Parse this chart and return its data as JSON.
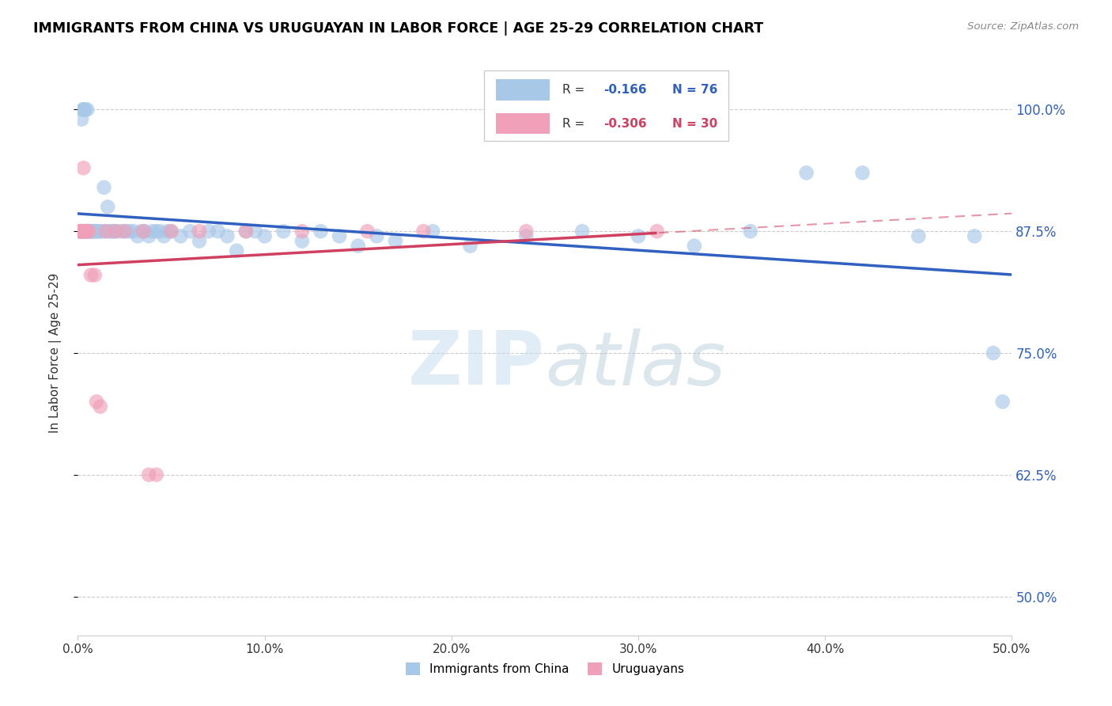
{
  "title": "IMMIGRANTS FROM CHINA VS URUGUAYAN IN LABOR FORCE | AGE 25-29 CORRELATION CHART",
  "source": "Source: ZipAtlas.com",
  "ylabel": "In Labor Force | Age 25-29",
  "yticks": [
    0.5,
    0.625,
    0.75,
    0.875,
    1.0
  ],
  "ytick_labels": [
    "50.0%",
    "62.5%",
    "75.0%",
    "87.5%",
    "100.0%"
  ],
  "xlim": [
    0.0,
    0.5
  ],
  "ylim": [
    0.46,
    1.04
  ],
  "legend_r_china": "-0.166",
  "legend_n_china": "76",
  "legend_r_uruguay": "-0.306",
  "legend_n_uruguay": "30",
  "color_china": "#a8c8e8",
  "color_uruguay": "#f0a0b8",
  "color_china_line": "#3060c0",
  "color_uruguay_line": "#d04060",
  "color_right_labels": "#3060c0",
  "watermark": "ZIPatlas",
  "china_x": [
    0.001,
    0.002,
    0.002,
    0.003,
    0.003,
    0.003,
    0.004,
    0.004,
    0.004,
    0.005,
    0.005,
    0.005,
    0.006,
    0.006,
    0.007,
    0.007,
    0.008,
    0.008,
    0.009,
    0.01,
    0.01,
    0.011,
    0.012,
    0.013,
    0.014,
    0.015,
    0.016,
    0.017,
    0.018,
    0.019,
    0.02,
    0.022,
    0.024,
    0.026,
    0.028,
    0.03,
    0.032,
    0.034,
    0.036,
    0.038,
    0.04,
    0.042,
    0.044,
    0.046,
    0.048,
    0.05,
    0.055,
    0.06,
    0.065,
    0.07,
    0.075,
    0.08,
    0.085,
    0.09,
    0.095,
    0.1,
    0.11,
    0.12,
    0.13,
    0.14,
    0.15,
    0.16,
    0.17,
    0.19,
    0.21,
    0.24,
    0.27,
    0.3,
    0.33,
    0.36,
    0.39,
    0.42,
    0.45,
    0.48,
    0.49,
    0.495
  ],
  "china_y": [
    0.875,
    0.99,
    0.875,
    1.0,
    1.0,
    1.0,
    1.0,
    0.875,
    0.875,
    1.0,
    0.875,
    0.875,
    0.875,
    0.875,
    0.875,
    0.875,
    0.875,
    0.875,
    0.875,
    0.875,
    0.875,
    0.875,
    0.875,
    0.875,
    0.92,
    0.875,
    0.9,
    0.875,
    0.875,
    0.875,
    0.875,
    0.875,
    0.875,
    0.875,
    0.875,
    0.875,
    0.87,
    0.875,
    0.875,
    0.87,
    0.875,
    0.875,
    0.875,
    0.87,
    0.875,
    0.875,
    0.87,
    0.875,
    0.865,
    0.875,
    0.875,
    0.87,
    0.855,
    0.875,
    0.875,
    0.87,
    0.875,
    0.865,
    0.875,
    0.87,
    0.86,
    0.87,
    0.865,
    0.875,
    0.86,
    0.87,
    0.875,
    0.87,
    0.86,
    0.875,
    0.935,
    0.935,
    0.87,
    0.87,
    0.75,
    0.7
  ],
  "uruguay_x": [
    0.001,
    0.001,
    0.002,
    0.002,
    0.002,
    0.003,
    0.003,
    0.004,
    0.004,
    0.005,
    0.005,
    0.006,
    0.007,
    0.009,
    0.01,
    0.012,
    0.015,
    0.02,
    0.025,
    0.035,
    0.038,
    0.042,
    0.05,
    0.065,
    0.09,
    0.12,
    0.155,
    0.185,
    0.24,
    0.31
  ],
  "uruguay_y": [
    0.875,
    0.875,
    0.875,
    0.875,
    0.875,
    0.94,
    0.875,
    0.875,
    0.875,
    0.875,
    0.875,
    0.875,
    0.83,
    0.83,
    0.7,
    0.695,
    0.875,
    0.875,
    0.875,
    0.875,
    0.625,
    0.625,
    0.875,
    0.875,
    0.875,
    0.875,
    0.875,
    0.875,
    0.875,
    0.875
  ]
}
